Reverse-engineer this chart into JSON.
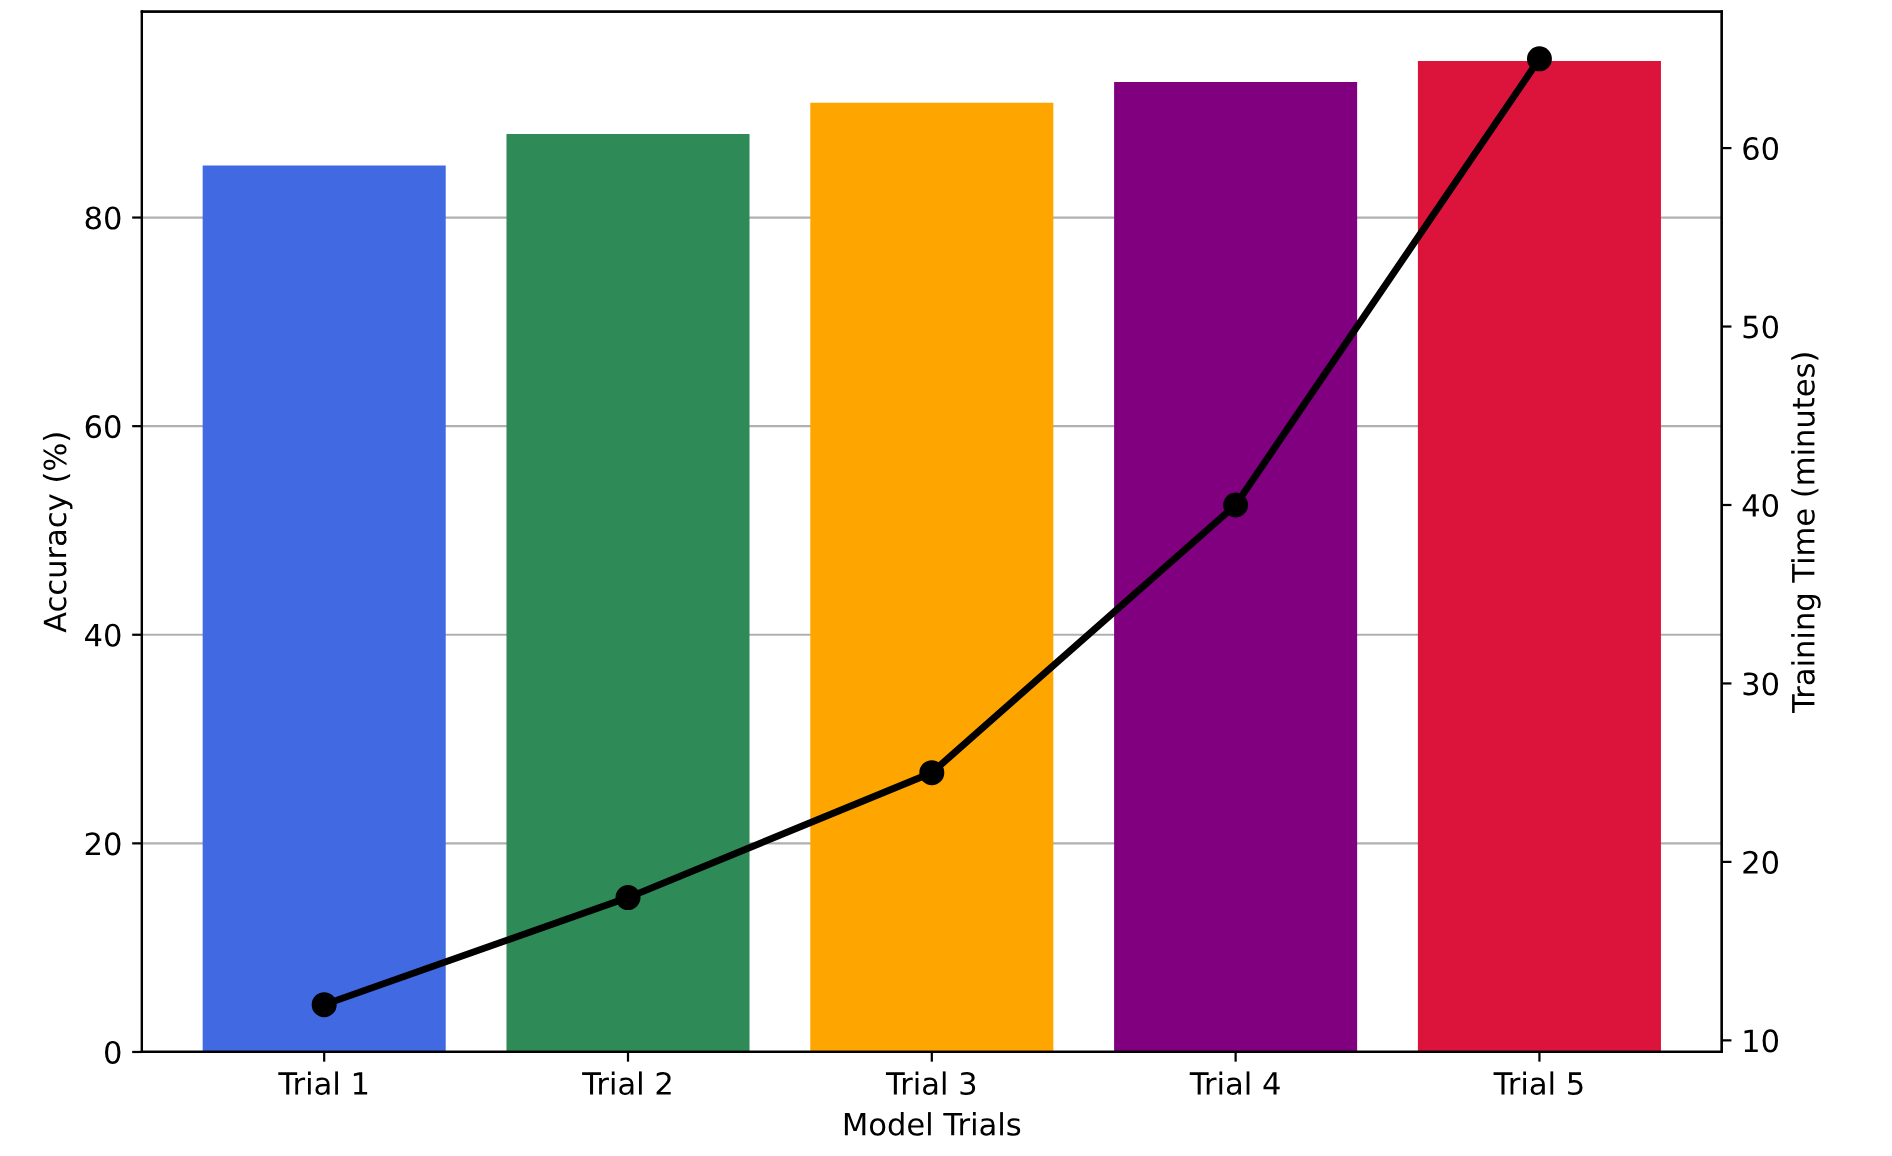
{
  "chart_data": {
    "type": "bar",
    "xlabel": "Model Trials",
    "ylabel": "Accuracy (%)",
    "y2label": "Training Time (minutes)",
    "categories": [
      "Trial 1",
      "Trial 2",
      "Trial 3",
      "Trial 4",
      "Trial 5"
    ],
    "series": [
      {
        "colors": [
          "#4169e1",
          "#2e8b57",
          "#ffa500",
          "#800080",
          "#dc143c"
        ],
        "values": [
          85,
          88,
          91,
          93,
          95
        ]
      },
      {
        "type": "line",
        "axis": "y2",
        "color": "#000000",
        "marker": "circle",
        "line_style": "solid",
        "values": [
          12,
          18,
          25,
          40,
          65
        ]
      }
    ],
    "ylim": [
      0,
      99.75
    ],
    "yticks": [
      0,
      20,
      40,
      60,
      80
    ],
    "y2lim": [
      9.35,
      67.65
    ],
    "y2ticks": [
      10,
      20,
      30,
      40,
      50,
      60
    ],
    "grid": "y"
  }
}
